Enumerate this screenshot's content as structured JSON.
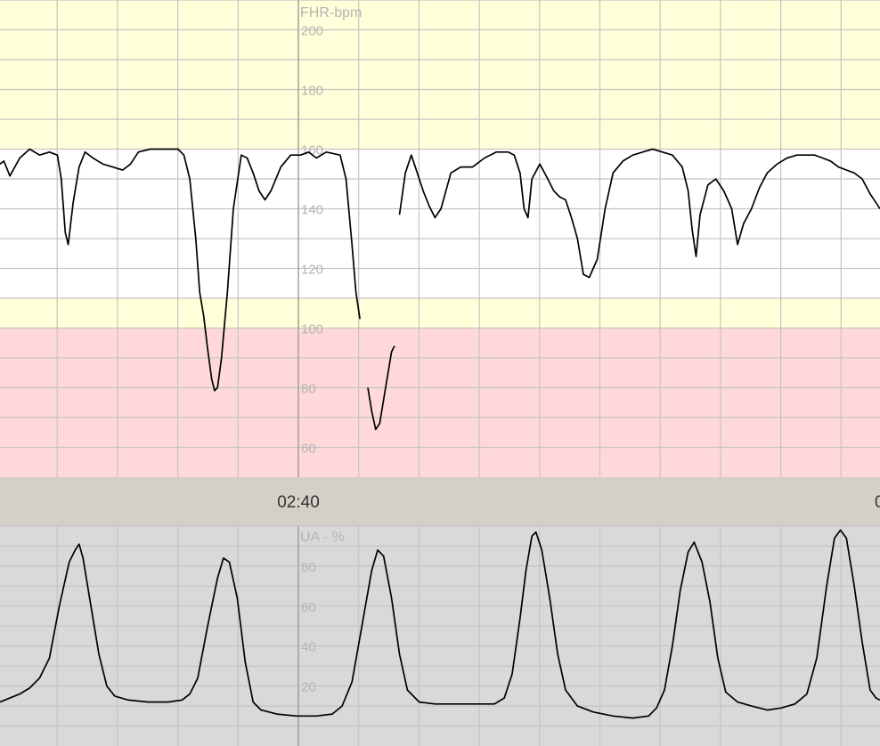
{
  "chart_data": [
    {
      "type": "line",
      "title": "",
      "ylabel": "FHR-bpm",
      "ylim": [
        50,
        210
      ],
      "y_ticks": [
        "60",
        "80",
        "100",
        "120",
        "140",
        "160",
        "180",
        "200"
      ],
      "grid": true,
      "bands": [
        {
          "from": 50,
          "to": 100,
          "color": "#ffd9d9"
        },
        {
          "from": 100,
          "to": 110,
          "color": "#ffffd9"
        },
        {
          "from": 110,
          "to": 160,
          "color": "#ffffff"
        },
        {
          "from": 160,
          "to": 210,
          "color": "#ffffd9"
        }
      ],
      "series": [
        {
          "color": "#000000",
          "segments": [
            [
              [
                0.0,
                155
              ],
              [
                0.2,
                156
              ],
              [
                0.5,
                151
              ],
              [
                1.0,
                157
              ],
              [
                1.5,
                160
              ],
              [
                2.0,
                158
              ],
              [
                2.5,
                159
              ],
              [
                2.9,
                158
              ],
              [
                3.1,
                150
              ],
              [
                3.3,
                132
              ],
              [
                3.45,
                128
              ],
              [
                3.7,
                142
              ],
              [
                4.0,
                154
              ],
              [
                4.3,
                159
              ],
              [
                4.7,
                157
              ],
              [
                5.2,
                155
              ],
              [
                5.7,
                154
              ],
              [
                6.2,
                153
              ],
              [
                6.6,
                155
              ],
              [
                7.0,
                159
              ],
              [
                7.6,
                160
              ],
              [
                8.2,
                160
              ],
              [
                9.0,
                160
              ],
              [
                9.3,
                158
              ],
              [
                9.6,
                150
              ],
              [
                9.9,
                130
              ],
              [
                10.1,
                112
              ],
              [
                10.3,
                104
              ],
              [
                10.5,
                93
              ],
              [
                10.7,
                83
              ],
              [
                10.85,
                79
              ],
              [
                11.0,
                80
              ],
              [
                11.2,
                90
              ],
              [
                11.5,
                112
              ],
              [
                11.8,
                140
              ],
              [
                12.2,
                158
              ],
              [
                12.5,
                157
              ],
              [
                12.8,
                152
              ],
              [
                13.1,
                146
              ],
              [
                13.4,
                143
              ],
              [
                13.7,
                146
              ],
              [
                14.2,
                154
              ],
              [
                14.7,
                158
              ],
              [
                15.2,
                158
              ],
              [
                15.6,
                159
              ],
              [
                16.0,
                157
              ],
              [
                16.5,
                159
              ],
              [
                17.2,
                158
              ],
              [
                17.5,
                150
              ],
              [
                17.8,
                128
              ],
              [
                18.0,
                112
              ],
              [
                18.2,
                103
              ]
            ],
            [
              [
                18.6,
                80
              ],
              [
                18.8,
                72
              ],
              [
                19.0,
                66
              ],
              [
                19.2,
                68
              ],
              [
                19.5,
                80
              ],
              [
                19.8,
                92
              ],
              [
                19.95,
                94
              ]
            ],
            [
              [
                20.2,
                138
              ],
              [
                20.5,
                152
              ],
              [
                20.8,
                158
              ],
              [
                21.1,
                152
              ],
              [
                21.4,
                146
              ],
              [
                21.7,
                141
              ],
              [
                22.0,
                137
              ],
              [
                22.3,
                140
              ],
              [
                22.8,
                152
              ],
              [
                23.3,
                154
              ],
              [
                23.9,
                154
              ],
              [
                24.5,
                157
              ],
              [
                25.1,
                159
              ],
              [
                25.7,
                159
              ],
              [
                26.0,
                158
              ],
              [
                26.3,
                152
              ],
              [
                26.5,
                140
              ],
              [
                26.7,
                137
              ],
              [
                26.9,
                150
              ],
              [
                27.3,
                155
              ],
              [
                27.7,
                150
              ],
              [
                28.0,
                146
              ],
              [
                28.3,
                144
              ],
              [
                28.6,
                143
              ],
              [
                28.9,
                137
              ],
              [
                29.2,
                130
              ],
              [
                29.5,
                118
              ],
              [
                29.8,
                117
              ],
              [
                30.2,
                123
              ],
              [
                30.6,
                140
              ],
              [
                31.0,
                152
              ],
              [
                31.5,
                156
              ],
              [
                32.0,
                158
              ],
              [
                32.5,
                159
              ],
              [
                33.0,
                160
              ],
              [
                33.5,
                159
              ],
              [
                34.0,
                158
              ],
              [
                34.5,
                154
              ],
              [
                34.8,
                146
              ],
              [
                35.0,
                133
              ],
              [
                35.2,
                124
              ],
              [
                35.4,
                138
              ],
              [
                35.8,
                148
              ],
              [
                36.2,
                150
              ],
              [
                36.6,
                146
              ],
              [
                37.0,
                140
              ],
              [
                37.3,
                128
              ],
              [
                37.6,
                135
              ],
              [
                38.0,
                140
              ],
              [
                38.4,
                147
              ],
              [
                38.8,
                152
              ],
              [
                39.3,
                155
              ],
              [
                39.8,
                157
              ],
              [
                40.3,
                158
              ],
              [
                40.8,
                158
              ],
              [
                41.2,
                158
              ],
              [
                41.6,
                157
              ],
              [
                42.0,
                156
              ],
              [
                42.4,
                154
              ],
              [
                42.8,
                153
              ],
              [
                43.2,
                152
              ],
              [
                43.6,
                150
              ],
              [
                44.0,
                145
              ],
              [
                44.3,
                142
              ],
              [
                44.5,
                140
              ]
            ]
          ]
        }
      ]
    },
    {
      "type": "line",
      "title": "",
      "ylabel": "UA - %",
      "ylim": [
        -10,
        100
      ],
      "y_ticks": [
        "20",
        "40",
        "60",
        "80"
      ],
      "grid": true,
      "series": [
        {
          "color": "#000000",
          "values": [
            [
              0.0,
              12
            ],
            [
              0.5,
              14
            ],
            [
              1.0,
              16
            ],
            [
              1.5,
              19
            ],
            [
              2.0,
              24
            ],
            [
              2.5,
              34
            ],
            [
              3.0,
              60
            ],
            [
              3.5,
              82
            ],
            [
              3.8,
              88
            ],
            [
              4.0,
              91
            ],
            [
              4.2,
              84
            ],
            [
              4.6,
              60
            ],
            [
              5.0,
              36
            ],
            [
              5.4,
              20
            ],
            [
              5.8,
              15
            ],
            [
              6.5,
              13
            ],
            [
              7.5,
              12
            ],
            [
              8.5,
              12
            ],
            [
              9.2,
              13
            ],
            [
              9.6,
              16
            ],
            [
              10.0,
              24
            ],
            [
              10.5,
              50
            ],
            [
              11.0,
              74
            ],
            [
              11.3,
              84
            ],
            [
              11.6,
              82
            ],
            [
              12.0,
              64
            ],
            [
              12.4,
              32
            ],
            [
              12.8,
              12
            ],
            [
              13.2,
              8
            ],
            [
              14.0,
              6
            ],
            [
              15.0,
              5
            ],
            [
              16.0,
              5
            ],
            [
              16.8,
              6
            ],
            [
              17.3,
              10
            ],
            [
              17.8,
              22
            ],
            [
              18.3,
              50
            ],
            [
              18.8,
              78
            ],
            [
              19.1,
              88
            ],
            [
              19.4,
              85
            ],
            [
              19.8,
              64
            ],
            [
              20.2,
              36
            ],
            [
              20.6,
              18
            ],
            [
              21.2,
              12
            ],
            [
              22.0,
              11
            ],
            [
              23.0,
              11
            ],
            [
              24.0,
              11
            ],
            [
              25.0,
              11
            ],
            [
              25.5,
              14
            ],
            [
              25.9,
              26
            ],
            [
              26.3,
              54
            ],
            [
              26.6,
              78
            ],
            [
              26.9,
              95
            ],
            [
              27.1,
              97
            ],
            [
              27.4,
              88
            ],
            [
              27.8,
              64
            ],
            [
              28.2,
              36
            ],
            [
              28.6,
              18
            ],
            [
              29.2,
              10
            ],
            [
              30.0,
              7
            ],
            [
              31.0,
              5
            ],
            [
              32.0,
              4
            ],
            [
              32.8,
              5
            ],
            [
              33.2,
              9
            ],
            [
              33.6,
              18
            ],
            [
              34.0,
              40
            ],
            [
              34.4,
              68
            ],
            [
              34.8,
              87
            ],
            [
              35.1,
              92
            ],
            [
              35.5,
              82
            ],
            [
              35.9,
              62
            ],
            [
              36.3,
              34
            ],
            [
              36.7,
              17
            ],
            [
              37.3,
              12
            ],
            [
              38.0,
              10
            ],
            [
              38.8,
              8
            ],
            [
              39.5,
              9
            ],
            [
              40.2,
              11
            ],
            [
              40.8,
              16
            ],
            [
              41.3,
              34
            ],
            [
              41.8,
              70
            ],
            [
              42.2,
              94
            ],
            [
              42.5,
              98
            ],
            [
              42.8,
              94
            ],
            [
              43.2,
              70
            ],
            [
              43.6,
              42
            ],
            [
              44.0,
              18
            ],
            [
              44.3,
              14
            ],
            [
              44.5,
              13
            ]
          ]
        }
      ]
    }
  ],
  "time_axis": {
    "labels": [
      "02:40"
    ],
    "partial_label": "0"
  }
}
